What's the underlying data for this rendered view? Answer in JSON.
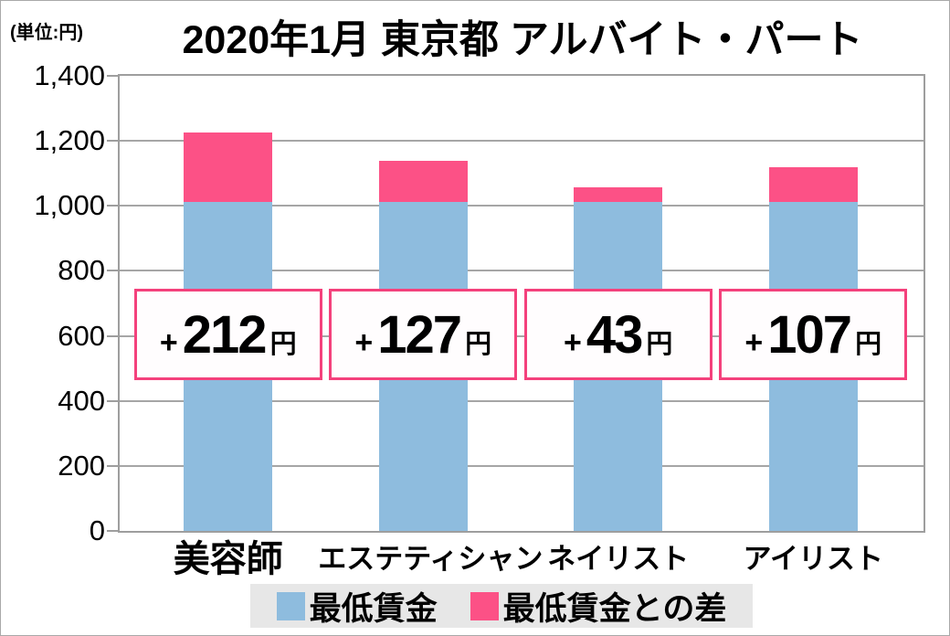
{
  "header": {
    "unit_label": "(単位:円)",
    "title": "2020年1月 東京都 アルバイト・パート"
  },
  "chart_data": {
    "type": "bar",
    "stacked": true,
    "title": "2020年1月 東京都 アルバイト・パート",
    "unit": "円",
    "categories": [
      "美容師",
      "エステティシャン",
      "ネイリスト",
      "アイリスト"
    ],
    "series": [
      {
        "name": "最低賃金",
        "color": "#8ebcde",
        "values": [
          1013,
          1013,
          1013,
          1013
        ]
      },
      {
        "name": "最低賃金との差",
        "color": "#fc5186",
        "values": [
          212,
          127,
          43,
          107
        ]
      }
    ],
    "totals": [
      1225,
      1140,
      1056,
      1120
    ],
    "annotations": [
      {
        "prefix": "+",
        "value": "212",
        "suffix": "円"
      },
      {
        "prefix": "+",
        "value": "127",
        "suffix": "円"
      },
      {
        "prefix": "+",
        "value": "43",
        "suffix": "円"
      },
      {
        "prefix": "+",
        "value": "107",
        "suffix": "円"
      }
    ],
    "yticks": [
      {
        "value": 0,
        "label": "0"
      },
      {
        "value": 200,
        "label": "200"
      },
      {
        "value": 400,
        "label": "400"
      },
      {
        "value": 600,
        "label": "600"
      },
      {
        "value": 800,
        "label": "800"
      },
      {
        "value": 1000,
        "label": "1,000"
      },
      {
        "value": 1200,
        "label": "1,200"
      },
      {
        "value": 1400,
        "label": "1,400"
      }
    ],
    "ylim": [
      0,
      1400
    ],
    "grid": true,
    "legend_position": "bottom",
    "annotation_border_color": "#f4417c"
  },
  "legend": {
    "items": [
      {
        "label": "最低賃金",
        "color": "#8ebcde"
      },
      {
        "label": "最低賃金との差",
        "color": "#fc5186"
      }
    ]
  }
}
